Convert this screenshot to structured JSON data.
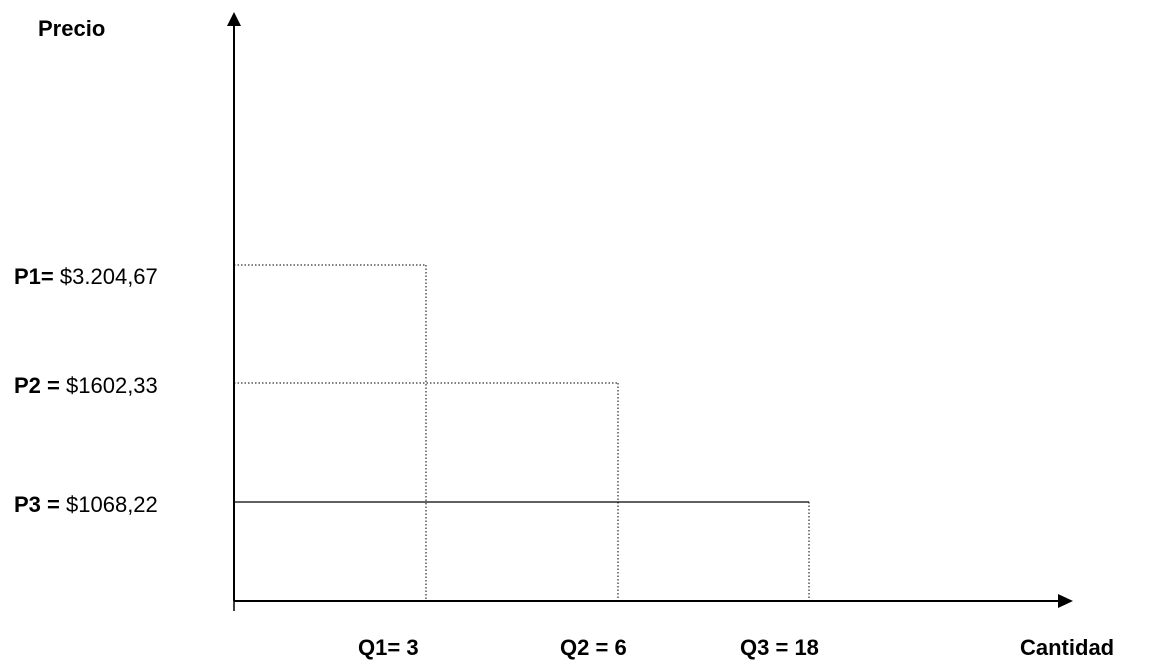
{
  "chart_data": {
    "type": "line",
    "ylabel": "Precio",
    "xlabel": "Cantidad",
    "grid": false,
    "points": [
      {
        "q_label": "Q1",
        "q_sep": "= ",
        "q": 3,
        "p_label": "P1",
        "p_sep": "=",
        "p_text": "$3.204,67",
        "p": 3204.67,
        "style": "dotted"
      },
      {
        "q_label": "Q2",
        "q_sep": " = ",
        "q": 6,
        "p_label": "P2",
        "p_sep": " =",
        "p_text": "$1602,33",
        "p": 1602.33,
        "style": "dotted"
      },
      {
        "q_label": "Q3",
        "q_sep": " = ",
        "q": 18,
        "p_label": "P3",
        "p_sep": " =",
        "p_text": "$1068,22",
        "p": 1068.22,
        "style": "solid"
      }
    ]
  }
}
